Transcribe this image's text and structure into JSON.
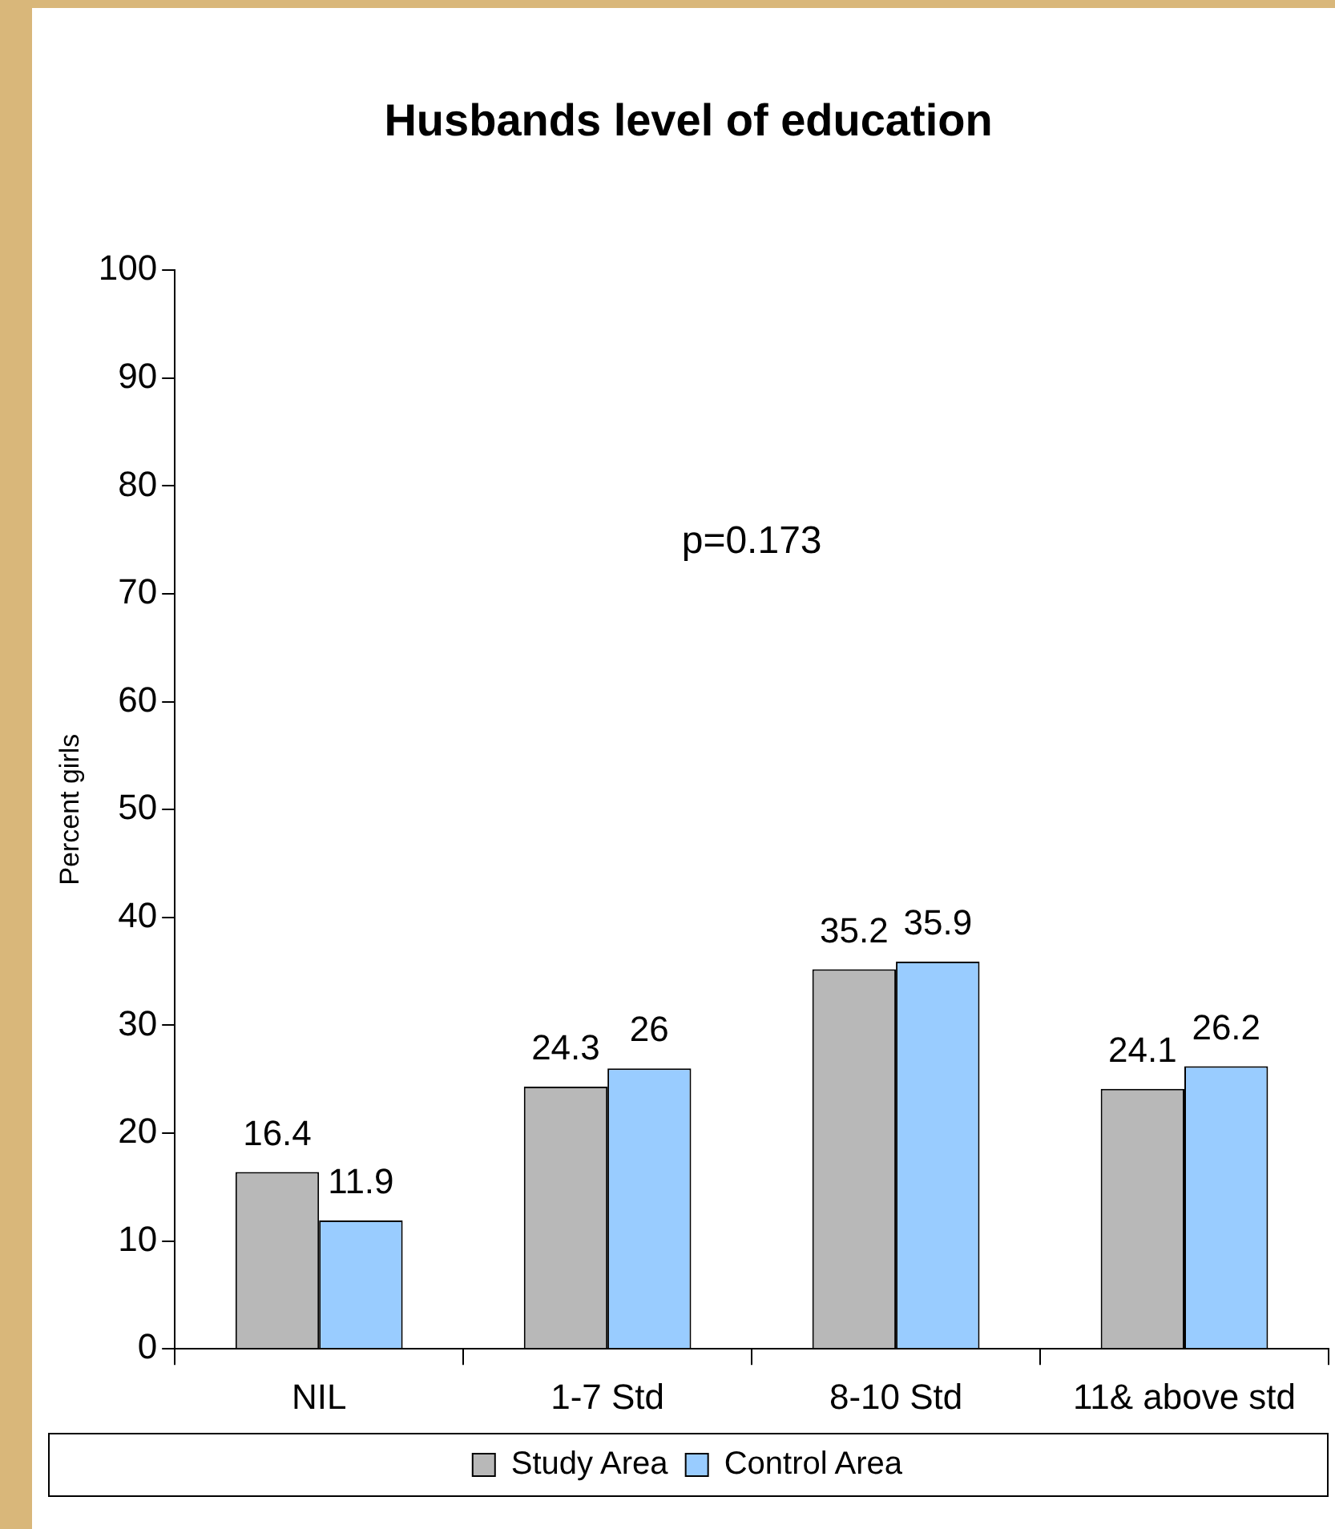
{
  "chart_data": {
    "type": "bar",
    "title": "Husbands level of education",
    "ylabel": "Percent girls",
    "categories": [
      "NIL",
      "1-7 Std",
      "8-10 Std",
      "11& above std"
    ],
    "series": [
      {
        "name": "Study Area",
        "color": "#b8b8b8",
        "values": [
          16.4,
          24.3,
          35.2,
          24.1
        ]
      },
      {
        "name": "Control Area",
        "color": "#99ccff",
        "values": [
          11.9,
          26,
          35.9,
          26.2
        ]
      }
    ],
    "ylim": [
      0,
      100
    ],
    "yticks": [
      0,
      10,
      20,
      30,
      40,
      50,
      60,
      70,
      80,
      90,
      100
    ],
    "annotations": [
      "p=0.173"
    ],
    "data_labels": true,
    "legend": "bottom",
    "grid": false
  }
}
